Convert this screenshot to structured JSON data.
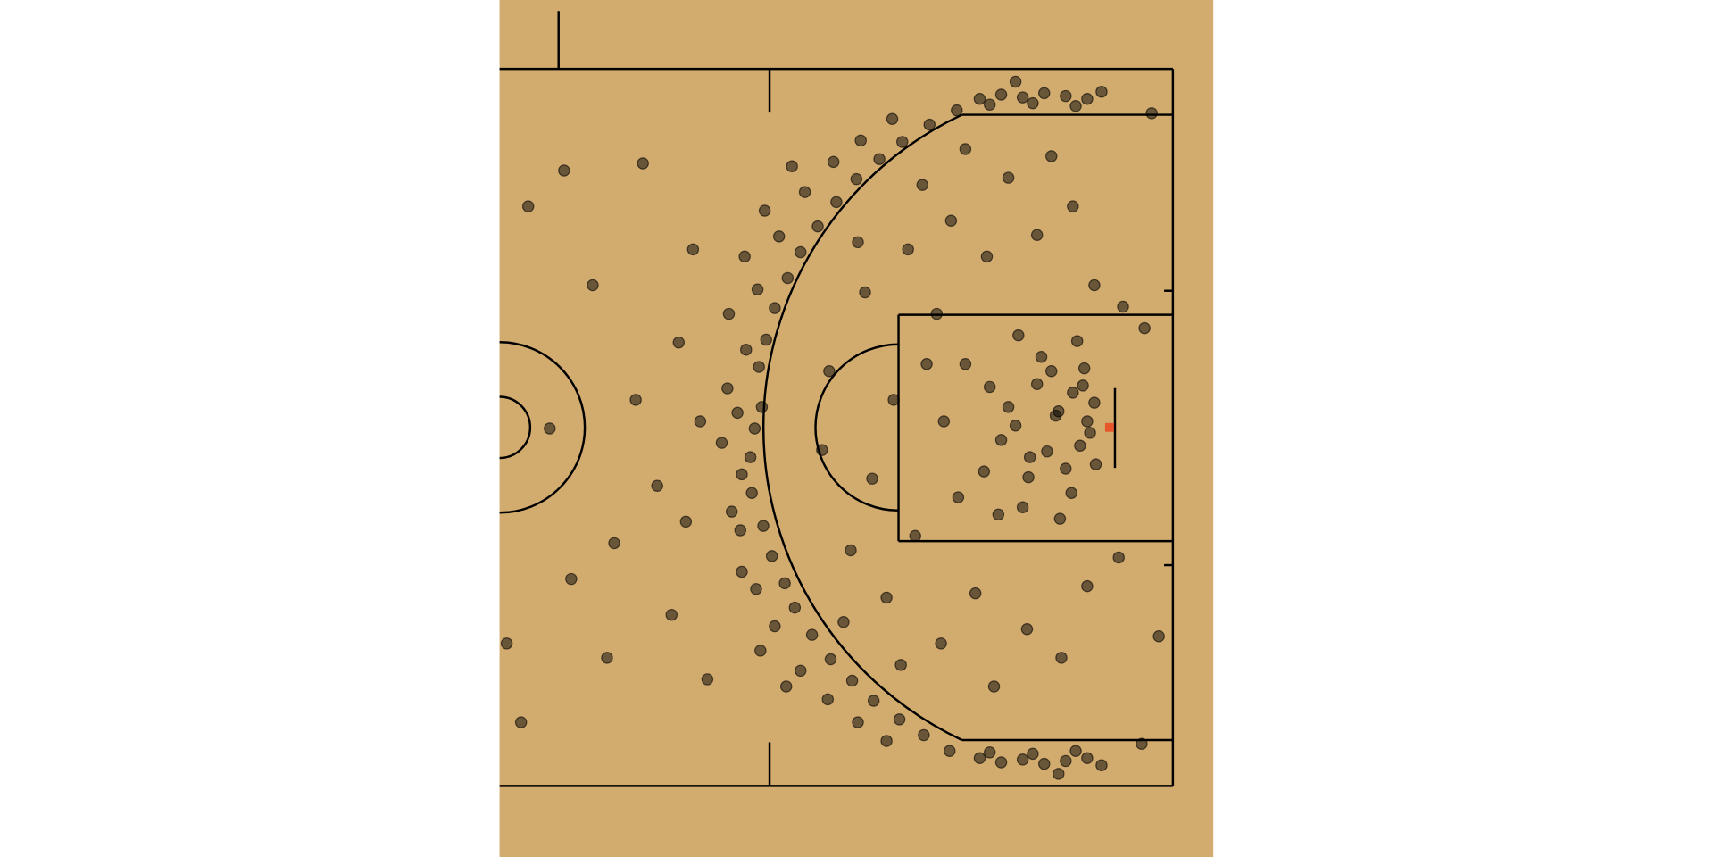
{
  "chart_data": {
    "type": "scatter",
    "color": "#000000",
    "xlim": [
      0,
      49.8
    ],
    "ylim": [
      -29.9,
      29.9
    ],
    "x": [
      17.8,
      18.3,
      17.5,
      18.1,
      17.6,
      18.6,
      18.4,
      19.2,
      19.0,
      20.1,
      19.9,
      21.0,
      20.6,
      22.2,
      21.8,
      23.5,
      23.1,
      24.9,
      24.6,
      26.5,
      26.1,
      28.1,
      27.9,
      30.0,
      29.6,
      31.9,
      31.4,
      16.6,
      16.9,
      17.2,
      16.8,
      18.0,
      17.9,
      19.5,
      19.2,
      21.3,
      21.0,
      23.3,
      22.9,
      25.2,
      25.0,
      27.4,
      27.0,
      15.9,
      15.5,
      16.2,
      16.0,
      17.1,
      16.9,
      18.5,
      18.2,
      20.4,
      20.0,
      33.5,
      35.0,
      36.5,
      38.0,
      39.5,
      41.0,
      34.2,
      37.2,
      40.2,
      42.0,
      33.5,
      35.0,
      36.5,
      38.0,
      39.5,
      41.0,
      34.2,
      37.2,
      40.2,
      42.0,
      36.0,
      39.0,
      41.0,
      40.5,
      41.5,
      40.0,
      39.5,
      41.2,
      38.8,
      38.2,
      37.5,
      36.9,
      40.8,
      39.9,
      37.8,
      36.5,
      35.5,
      35.0,
      34.2,
      33.8,
      40.3,
      39.1,
      36.2,
      34.8,
      32.5,
      32.0,
      41.6,
      40.7,
      38.5,
      37.0,
      39.0,
      36.0,
      30.5,
      29.0,
      27.5,
      26.0,
      28.5,
      27.0,
      31.5,
      30.8,
      34.0,
      33.2,
      37.5,
      36.8,
      40.0,
      39.2,
      25.5,
      24.5,
      23.0,
      22.5,
      35.5,
      34.5,
      38.5,
      32.5,
      29.5,
      28.0,
      41.5,
      41.0,
      43.5,
      43.2,
      31.0,
      29.8,
      25.0,
      24.0,
      12.5,
      11.0,
      9.5,
      8.0,
      13.5,
      12.0,
      6.5,
      5.0,
      3.5,
      2.0,
      1.5,
      4.5,
      14.5,
      10.0,
      7.5,
      0.5,
      14.0,
      13.0,
      45.0,
      46.0,
      45.5,
      44.8
    ],
    "values": [
      0,
      1.5,
      -2,
      4.3,
      -4.5,
      6.2,
      -6.8,
      8.4,
      -8.9,
      10.5,
      -10.8,
      12.3,
      -12.5,
      14.1,
      -14.4,
      15.8,
      -16.1,
      17.4,
      -17.6,
      18.8,
      -19.0,
      20.0,
      -20.3,
      21.2,
      -21.4,
      22.2,
      -22.5,
      1.1,
      -3.2,
      5.5,
      -7.1,
      9.7,
      -11.2,
      13.4,
      -13.8,
      16.5,
      -16.9,
      18.6,
      -18.9,
      20.1,
      -20.5,
      21.6,
      -21.8,
      2.8,
      -1.0,
      -5.8,
      8.0,
      12.0,
      -10.0,
      15.2,
      -15.5,
      18.3,
      -18.0,
      23.0,
      23.3,
      23.1,
      23.4,
      23.2,
      23.0,
      22.6,
      22.7,
      22.5,
      23.5,
      -23.0,
      -23.3,
      -23.1,
      -23.4,
      -23.2,
      -23.0,
      -22.6,
      -22.7,
      -22.5,
      -23.5,
      24.2,
      -24.1,
      0.5,
      -1.2,
      1.8,
      2.5,
      -2.8,
      -0.3,
      0.9,
      -1.6,
      3.1,
      -3.4,
      4.2,
      -4.5,
      5.0,
      -5.5,
      1.5,
      -0.8,
      2.9,
      -3.0,
      6.1,
      -6.3,
      6.5,
      -6.0,
      4.5,
      -4.8,
      -2.5,
      3.0,
      4.0,
      -2.0,
      1.2,
      0.2,
      8.0,
      -7.5,
      2.0,
      -3.5,
      12.5,
      -11.8,
      14.5,
      -15.0,
      12.0,
      -11.5,
      13.5,
      -14.0,
      15.5,
      -16.0,
      9.5,
      -8.5,
      4.0,
      -1.5,
      17.5,
      -18.0,
      19.0,
      19.5,
      17.0,
      -16.5,
      10.0,
      -11.0,
      8.5,
      -9.0,
      0.5,
      4.5,
      13.0,
      -13.5,
      6.0,
      -4.0,
      2.0,
      -8.0,
      12.5,
      -13.0,
      10.0,
      -10.5,
      0.0,
      15.5,
      -20.5,
      18.0,
      -17.5,
      18.5,
      -16.0,
      -15.0,
      0.5,
      -6.5,
      7.0,
      -14.5,
      22.0,
      -22.0
    ]
  }
}
